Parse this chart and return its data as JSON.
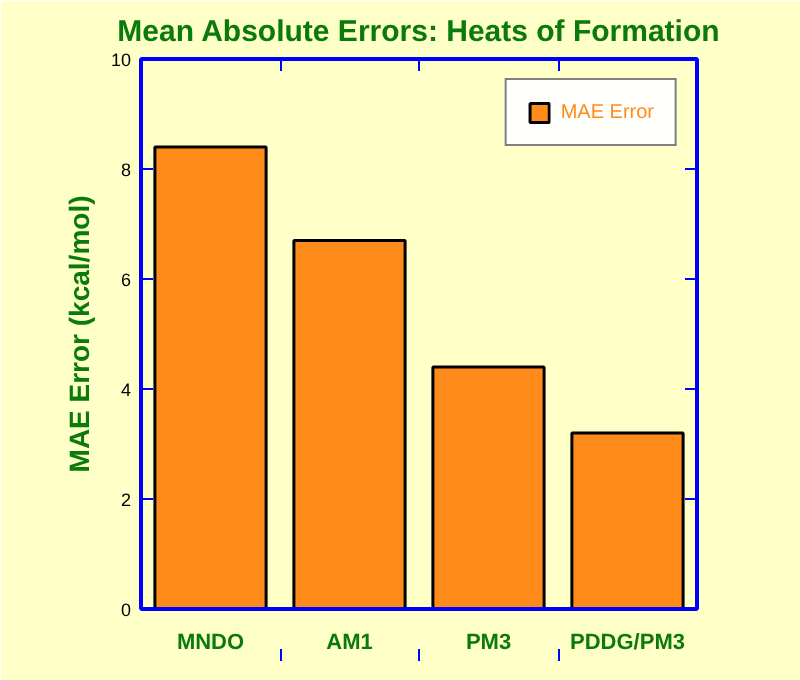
{
  "chart_data": {
    "type": "bar",
    "title": "Mean Absolute Errors: Heats of Formation",
    "ylabel": "MAE Error (kcal/mol)",
    "categories": [
      "MNDO",
      "AM1",
      "PM3",
      "PDDG/PM3"
    ],
    "series": [
      {
        "name": "MAE Error",
        "color": "#ff8c1a",
        "values": [
          8.4,
          6.7,
          4.4,
          3.2
        ]
      }
    ],
    "ylim": [
      0,
      10
    ],
    "yticks": [
      0,
      2,
      4,
      6,
      8,
      10
    ],
    "grid": false,
    "legend": "top right"
  }
}
